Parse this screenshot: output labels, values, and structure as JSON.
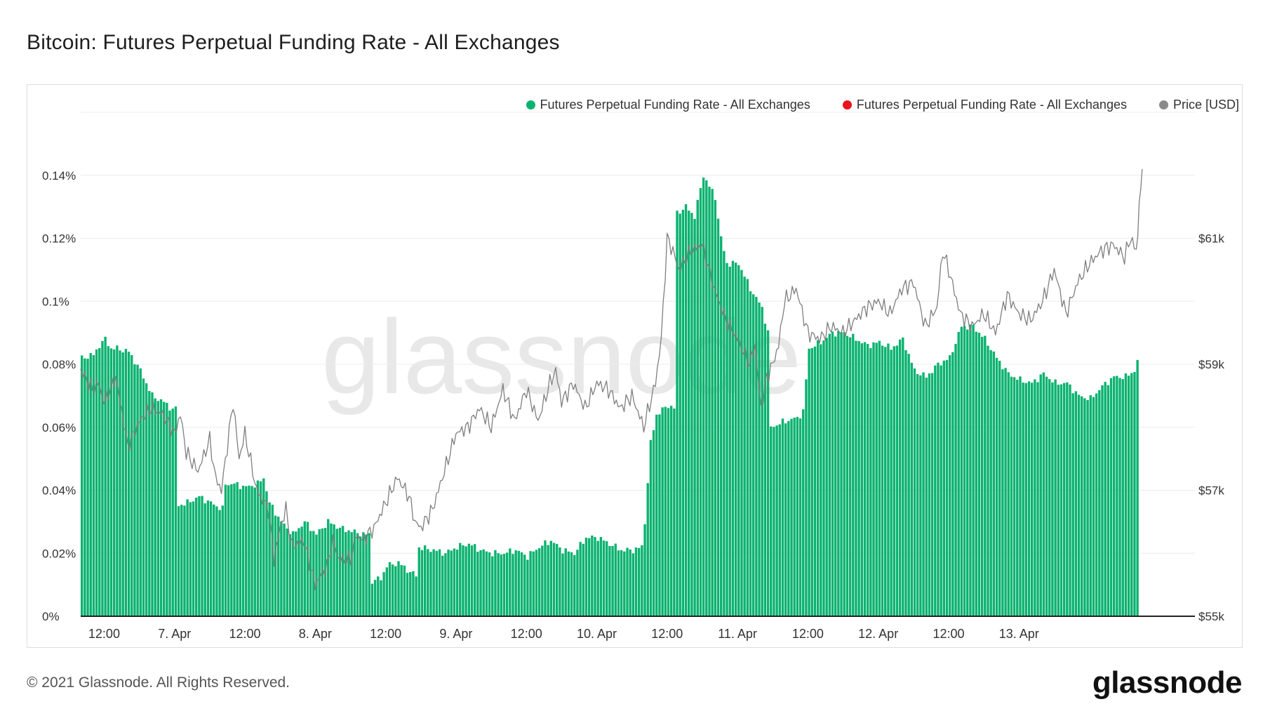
{
  "title": "Bitcoin: Futures Perpetual Funding Rate - All Exchanges",
  "footer": {
    "copyright": "© 2021 Glassnode. All Rights Reserved.",
    "brand": "glassnode"
  },
  "watermark": "glassnode",
  "legend": [
    {
      "label": "Futures Perpetual Funding Rate - All Exchanges",
      "color": "#0ab26f",
      "icon": "green-dot-icon"
    },
    {
      "label": "Futures Perpetual Funding Rate - All Exchanges",
      "color": "#e8141e",
      "icon": "red-dot-icon"
    },
    {
      "label": "Price [USD]",
      "color": "#8a8a8a",
      "icon": "gray-dot-icon"
    }
  ],
  "chart_data": {
    "type": "bar",
    "title": "Bitcoin: Futures Perpetual Funding Rate - All Exchanges",
    "x_start_hour": -16,
    "x_end_hour": 174,
    "x_ticks": [
      {
        "hour": -12,
        "label": "12:00"
      },
      {
        "hour": 0,
        "label": "7. Apr"
      },
      {
        "hour": 12,
        "label": "12:00"
      },
      {
        "hour": 24,
        "label": "8. Apr"
      },
      {
        "hour": 36,
        "label": "12:00"
      },
      {
        "hour": 48,
        "label": "9. Apr"
      },
      {
        "hour": 60,
        "label": "12:00"
      },
      {
        "hour": 72,
        "label": "10. Apr"
      },
      {
        "hour": 84,
        "label": "12:00"
      },
      {
        "hour": 96,
        "label": "11. Apr"
      },
      {
        "hour": 108,
        "label": "12:00"
      },
      {
        "hour": 120,
        "label": "12. Apr"
      },
      {
        "hour": 132,
        "label": "12:00"
      },
      {
        "hour": 144,
        "label": "13. Apr"
      }
    ],
    "y_left": {
      "min": 0,
      "max": 0.16,
      "ticks": [
        {
          "value": 0,
          "label": "0%"
        },
        {
          "value": 0.02,
          "label": "0.02%"
        },
        {
          "value": 0.04,
          "label": "0.04%"
        },
        {
          "value": 0.06,
          "label": "0.06%"
        },
        {
          "value": 0.08,
          "label": "0.08%"
        },
        {
          "value": 0.1,
          "label": "0.1%"
        },
        {
          "value": 0.12,
          "label": "0.12%"
        },
        {
          "value": 0.14,
          "label": "0.14%"
        }
      ]
    },
    "y_right": {
      "min": 55000,
      "max": 63000,
      "ticks": [
        {
          "value": 55000,
          "label": "$55k"
        },
        {
          "value": 57000,
          "label": "$57k"
        },
        {
          "value": 59000,
          "label": "$59k"
        },
        {
          "value": 61000,
          "label": "$61k"
        }
      ]
    },
    "series": [
      {
        "name": "Futures Perpetual Funding Rate - All Exchanges",
        "type": "bar",
        "color": "#0ab26f",
        "step_hours": 0.5,
        "points": [
          [
            -16,
            0.082
          ],
          [
            -14,
            0.083
          ],
          [
            -13,
            0.086
          ],
          [
            -12,
            0.088
          ],
          [
            -11,
            0.085
          ],
          [
            -10,
            0.085
          ],
          [
            -8,
            0.084
          ],
          [
            -6,
            0.078
          ],
          [
            -4,
            0.07
          ],
          [
            -2,
            0.068
          ],
          [
            0,
            0.066
          ],
          [
            -0.1,
            0.065
          ],
          [
            0,
            0.035
          ],
          [
            2,
            0.036
          ],
          [
            4,
            0.038
          ],
          [
            6,
            0.036
          ],
          [
            8,
            0.034
          ],
          [
            8.1,
            0.042
          ],
          [
            10,
            0.042
          ],
          [
            12,
            0.041
          ],
          [
            14,
            0.042
          ],
          [
            15,
            0.044
          ],
          [
            16,
            0.036
          ],
          [
            18,
            0.03
          ],
          [
            20,
            0.026
          ],
          [
            22,
            0.03
          ],
          [
            24,
            0.026
          ],
          [
            26,
            0.03
          ],
          [
            28,
            0.028
          ],
          [
            30,
            0.027
          ],
          [
            32,
            0.026
          ],
          [
            33,
            0.026
          ],
          [
            33.1,
            0.011
          ],
          [
            35,
            0.012
          ],
          [
            36,
            0.016
          ],
          [
            38,
            0.017
          ],
          [
            40,
            0.014
          ],
          [
            41,
            0.013
          ],
          [
            41.1,
            0.022
          ],
          [
            44,
            0.021
          ],
          [
            46,
            0.02
          ],
          [
            48,
            0.022
          ],
          [
            50,
            0.023
          ],
          [
            52,
            0.021
          ],
          [
            54,
            0.02
          ],
          [
            56,
            0.02
          ],
          [
            58,
            0.021
          ],
          [
            60,
            0.019
          ],
          [
            62,
            0.022
          ],
          [
            64,
            0.024
          ],
          [
            66,
            0.021
          ],
          [
            68,
            0.02
          ],
          [
            70,
            0.025
          ],
          [
            72,
            0.025
          ],
          [
            74,
            0.023
          ],
          [
            76,
            0.021
          ],
          [
            78,
            0.021
          ],
          [
            79.5,
            0.022
          ],
          [
            80,
            0.03
          ],
          [
            81,
            0.055
          ],
          [
            82,
            0.064
          ],
          [
            84,
            0.067
          ],
          [
            85,
            0.066
          ],
          [
            85.5,
            0.128
          ],
          [
            87,
            0.13
          ],
          [
            88.5,
            0.127
          ],
          [
            90,
            0.14
          ],
          [
            92,
            0.133
          ],
          [
            93,
            0.12
          ],
          [
            94,
            0.112
          ],
          [
            96,
            0.112
          ],
          [
            98,
            0.104
          ],
          [
            100,
            0.098
          ],
          [
            101,
            0.09
          ],
          [
            101.5,
            0.06
          ],
          [
            104,
            0.062
          ],
          [
            106,
            0.063
          ],
          [
            107,
            0.065
          ],
          [
            108,
            0.085
          ],
          [
            110,
            0.087
          ],
          [
            112,
            0.09
          ],
          [
            114,
            0.09
          ],
          [
            116,
            0.088
          ],
          [
            118,
            0.086
          ],
          [
            120,
            0.087
          ],
          [
            122,
            0.085
          ],
          [
            124,
            0.088
          ],
          [
            126,
            0.078
          ],
          [
            128,
            0.076
          ],
          [
            130,
            0.08
          ],
          [
            132,
            0.082
          ],
          [
            134,
            0.092
          ],
          [
            136,
            0.092
          ],
          [
            138,
            0.088
          ],
          [
            140,
            0.082
          ],
          [
            142,
            0.077
          ],
          [
            144,
            0.075
          ],
          [
            146,
            0.074
          ],
          [
            148,
            0.077
          ],
          [
            150,
            0.074
          ],
          [
            152,
            0.074
          ],
          [
            154,
            0.07
          ],
          [
            156,
            0.069
          ],
          [
            158,
            0.073
          ],
          [
            160,
            0.076
          ],
          [
            162,
            0.076
          ],
          [
            163.5,
            0.078
          ],
          [
            164,
            0.081
          ]
        ]
      },
      {
        "name": "Price [USD]",
        "type": "line",
        "color": "#8a8a8a",
        "points": [
          [
            -16,
            58900
          ],
          [
            -14,
            58600
          ],
          [
            -13,
            58700
          ],
          [
            -12,
            58400
          ],
          [
            -10,
            58800
          ],
          [
            -8,
            57700
          ],
          [
            -6,
            58100
          ],
          [
            -4,
            58300
          ],
          [
            -2,
            58200
          ],
          [
            0,
            57900
          ],
          [
            1,
            58200
          ],
          [
            2,
            57600
          ],
          [
            4,
            57300
          ],
          [
            6,
            57800
          ],
          [
            7,
            57200
          ],
          [
            8,
            57000
          ],
          [
            10,
            58400
          ],
          [
            11,
            57500
          ],
          [
            12,
            57900
          ],
          [
            14,
            57000
          ],
          [
            16,
            56700
          ],
          [
            17,
            55900
          ],
          [
            18,
            56400
          ],
          [
            19,
            56700
          ],
          [
            20,
            56100
          ],
          [
            22,
            56200
          ],
          [
            24,
            55500
          ],
          [
            26,
            55800
          ],
          [
            27,
            56200
          ],
          [
            28,
            55900
          ],
          [
            30,
            55900
          ],
          [
            31,
            56300
          ],
          [
            32,
            56200
          ],
          [
            34,
            56400
          ],
          [
            36,
            56800
          ],
          [
            38,
            57200
          ],
          [
            40,
            56900
          ],
          [
            41,
            56500
          ],
          [
            42,
            56400
          ],
          [
            44,
            56700
          ],
          [
            46,
            57300
          ],
          [
            48,
            57900
          ],
          [
            50,
            58000
          ],
          [
            52,
            58300
          ],
          [
            54,
            58000
          ],
          [
            56,
            58600
          ],
          [
            58,
            58100
          ],
          [
            60,
            58600
          ],
          [
            62,
            58100
          ],
          [
            64,
            58700
          ],
          [
            65,
            58900
          ],
          [
            66,
            58400
          ],
          [
            68,
            58700
          ],
          [
            70,
            58300
          ],
          [
            72,
            58700
          ],
          [
            74,
            58600
          ],
          [
            76,
            58300
          ],
          [
            78,
            58500
          ],
          [
            80,
            58000
          ],
          [
            82,
            58700
          ],
          [
            83,
            59400
          ],
          [
            84,
            61000
          ],
          [
            85,
            60800
          ],
          [
            86,
            60500
          ],
          [
            88,
            60800
          ],
          [
            90,
            60900
          ],
          [
            92,
            60200
          ],
          [
            94,
            59700
          ],
          [
            96,
            59400
          ],
          [
            98,
            59000
          ],
          [
            99,
            59300
          ],
          [
            100,
            58300
          ],
          [
            101,
            58800
          ],
          [
            102,
            59000
          ],
          [
            103,
            59300
          ],
          [
            104,
            60000
          ],
          [
            106,
            60200
          ],
          [
            108,
            59500
          ],
          [
            110,
            59400
          ],
          [
            112,
            59600
          ],
          [
            114,
            59500
          ],
          [
            116,
            59700
          ],
          [
            118,
            59900
          ],
          [
            120,
            60000
          ],
          [
            122,
            59800
          ],
          [
            124,
            60200
          ],
          [
            126,
            60300
          ],
          [
            128,
            59600
          ],
          [
            130,
            59900
          ],
          [
            131,
            60800
          ],
          [
            132,
            60500
          ],
          [
            134,
            59800
          ],
          [
            136,
            59600
          ],
          [
            138,
            59800
          ],
          [
            140,
            59500
          ],
          [
            142,
            60100
          ],
          [
            144,
            59800
          ],
          [
            146,
            59700
          ],
          [
            148,
            60000
          ],
          [
            150,
            60500
          ],
          [
            152,
            59800
          ],
          [
            154,
            60300
          ],
          [
            156,
            60600
          ],
          [
            158,
            60800
          ],
          [
            160,
            60900
          ],
          [
            162,
            60700
          ],
          [
            163,
            61000
          ],
          [
            164,
            60800
          ],
          [
            164.5,
            61500
          ],
          [
            165,
            62100
          ]
        ]
      }
    ]
  }
}
